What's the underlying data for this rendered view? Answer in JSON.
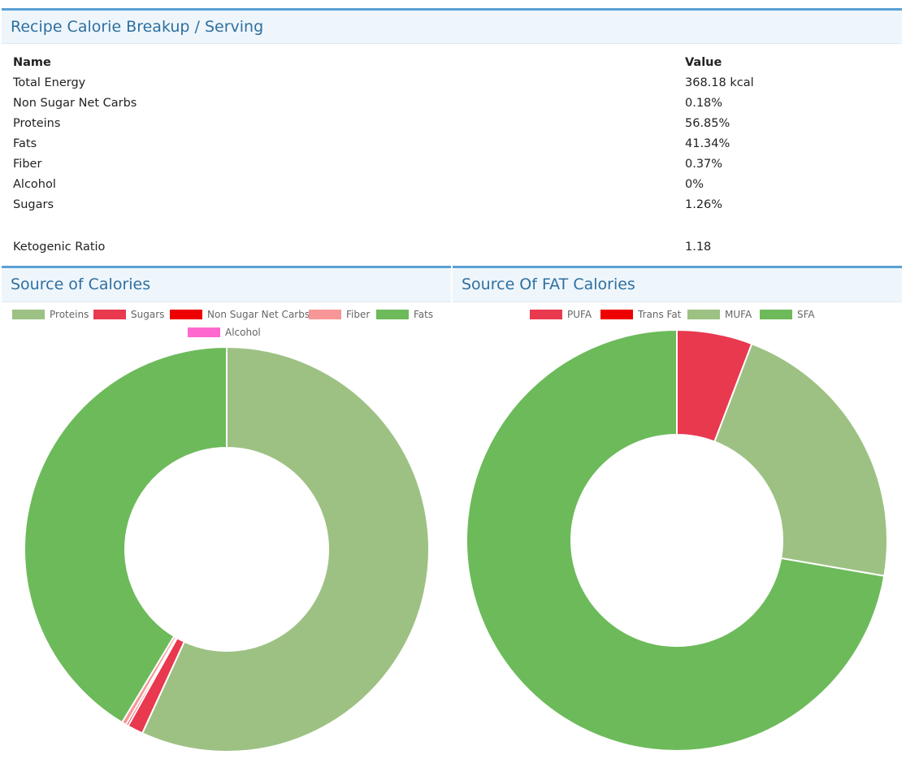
{
  "breakup": {
    "title": "Recipe Calorie Breakup / Serving",
    "header": {
      "name": "Name",
      "value": "Value"
    },
    "rows": [
      {
        "name": "Total Energy",
        "value": "368.18 kcal"
      },
      {
        "name": "Non Sugar Net Carbs",
        "value": "0.18%"
      },
      {
        "name": "Proteins",
        "value": "56.85%"
      },
      {
        "name": "Fats",
        "value": "41.34%"
      },
      {
        "name": "Fiber",
        "value": "0.37%"
      },
      {
        "name": "Alcohol",
        "value": "0%"
      },
      {
        "name": "Sugars",
        "value": "1.26%"
      }
    ],
    "keto": {
      "name": "Ketogenic Ratio",
      "value": "1.18"
    }
  },
  "chart_data": [
    {
      "type": "pie",
      "title": "Source of Calories",
      "donut": true,
      "legend_position": "top",
      "series": [
        {
          "name": "Proteins",
          "value": 56.85,
          "color": "#9dc183"
        },
        {
          "name": "Sugars",
          "value": 1.26,
          "color": "#e8394f"
        },
        {
          "name": "Non Sugar Net Carbs",
          "value": 0.18,
          "color": "#ee0000"
        },
        {
          "name": "Fiber",
          "value": 0.37,
          "color": "#f79696"
        },
        {
          "name": "Fats",
          "value": 41.34,
          "color": "#6dba5a"
        },
        {
          "name": "Alcohol",
          "value": 0,
          "color": "#ff69cf"
        }
      ]
    },
    {
      "type": "pie",
      "title": "Source Of FAT Calories",
      "donut": true,
      "legend_position": "top",
      "series": [
        {
          "name": "PUFA",
          "value": 5.8,
          "color": "#e8394f"
        },
        {
          "name": "Trans Fat",
          "value": 0,
          "color": "#ee0000"
        },
        {
          "name": "MUFA",
          "value": 21.9,
          "color": "#9dc183"
        },
        {
          "name": "SFA",
          "value": 72.3,
          "color": "#6dba5a"
        }
      ]
    }
  ]
}
